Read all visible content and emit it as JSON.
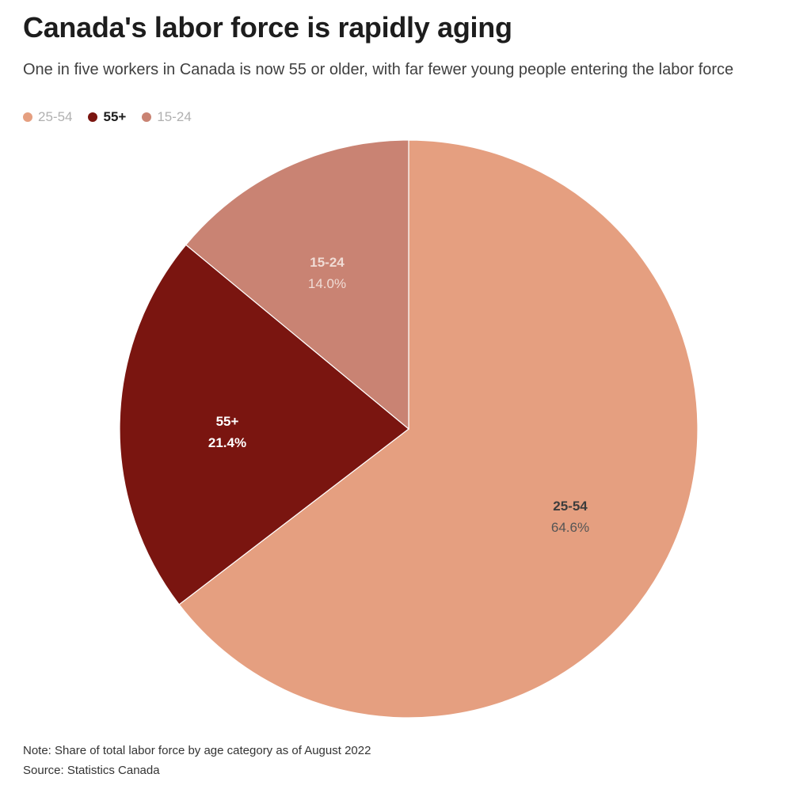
{
  "title": "Canada's labor force is rapidly aging",
  "subtitle": "One in five workers in Canada is now 55 or older, with far fewer young people entering the labor force",
  "legend": [
    {
      "label": "25-54",
      "color": "#e59f80",
      "active": false
    },
    {
      "label": "55+",
      "color": "#7a1510",
      "active": true
    },
    {
      "label": "15-24",
      "color": "#c98373",
      "active": false
    }
  ],
  "chart_data": {
    "type": "pie",
    "slices": [
      {
        "label": "25-54",
        "value": 64.6,
        "display": "64.6%",
        "color": "#e59f80",
        "label_color": "#3c3c3c",
        "value_color": "#555555"
      },
      {
        "label": "55+",
        "value": 21.4,
        "display": "21.4%",
        "color": "#7a1510",
        "label_color": "#ffffff",
        "value_color": "#ffffff"
      },
      {
        "label": "15-24",
        "value": 14.0,
        "display": "14.0%",
        "color": "#c98373",
        "label_color": "#f0dcd5",
        "value_color": "#f0dcd5"
      }
    ]
  },
  "note": "Note: Share of total labor force by age category as of August 2022",
  "source": "Source: Statistics Canada"
}
